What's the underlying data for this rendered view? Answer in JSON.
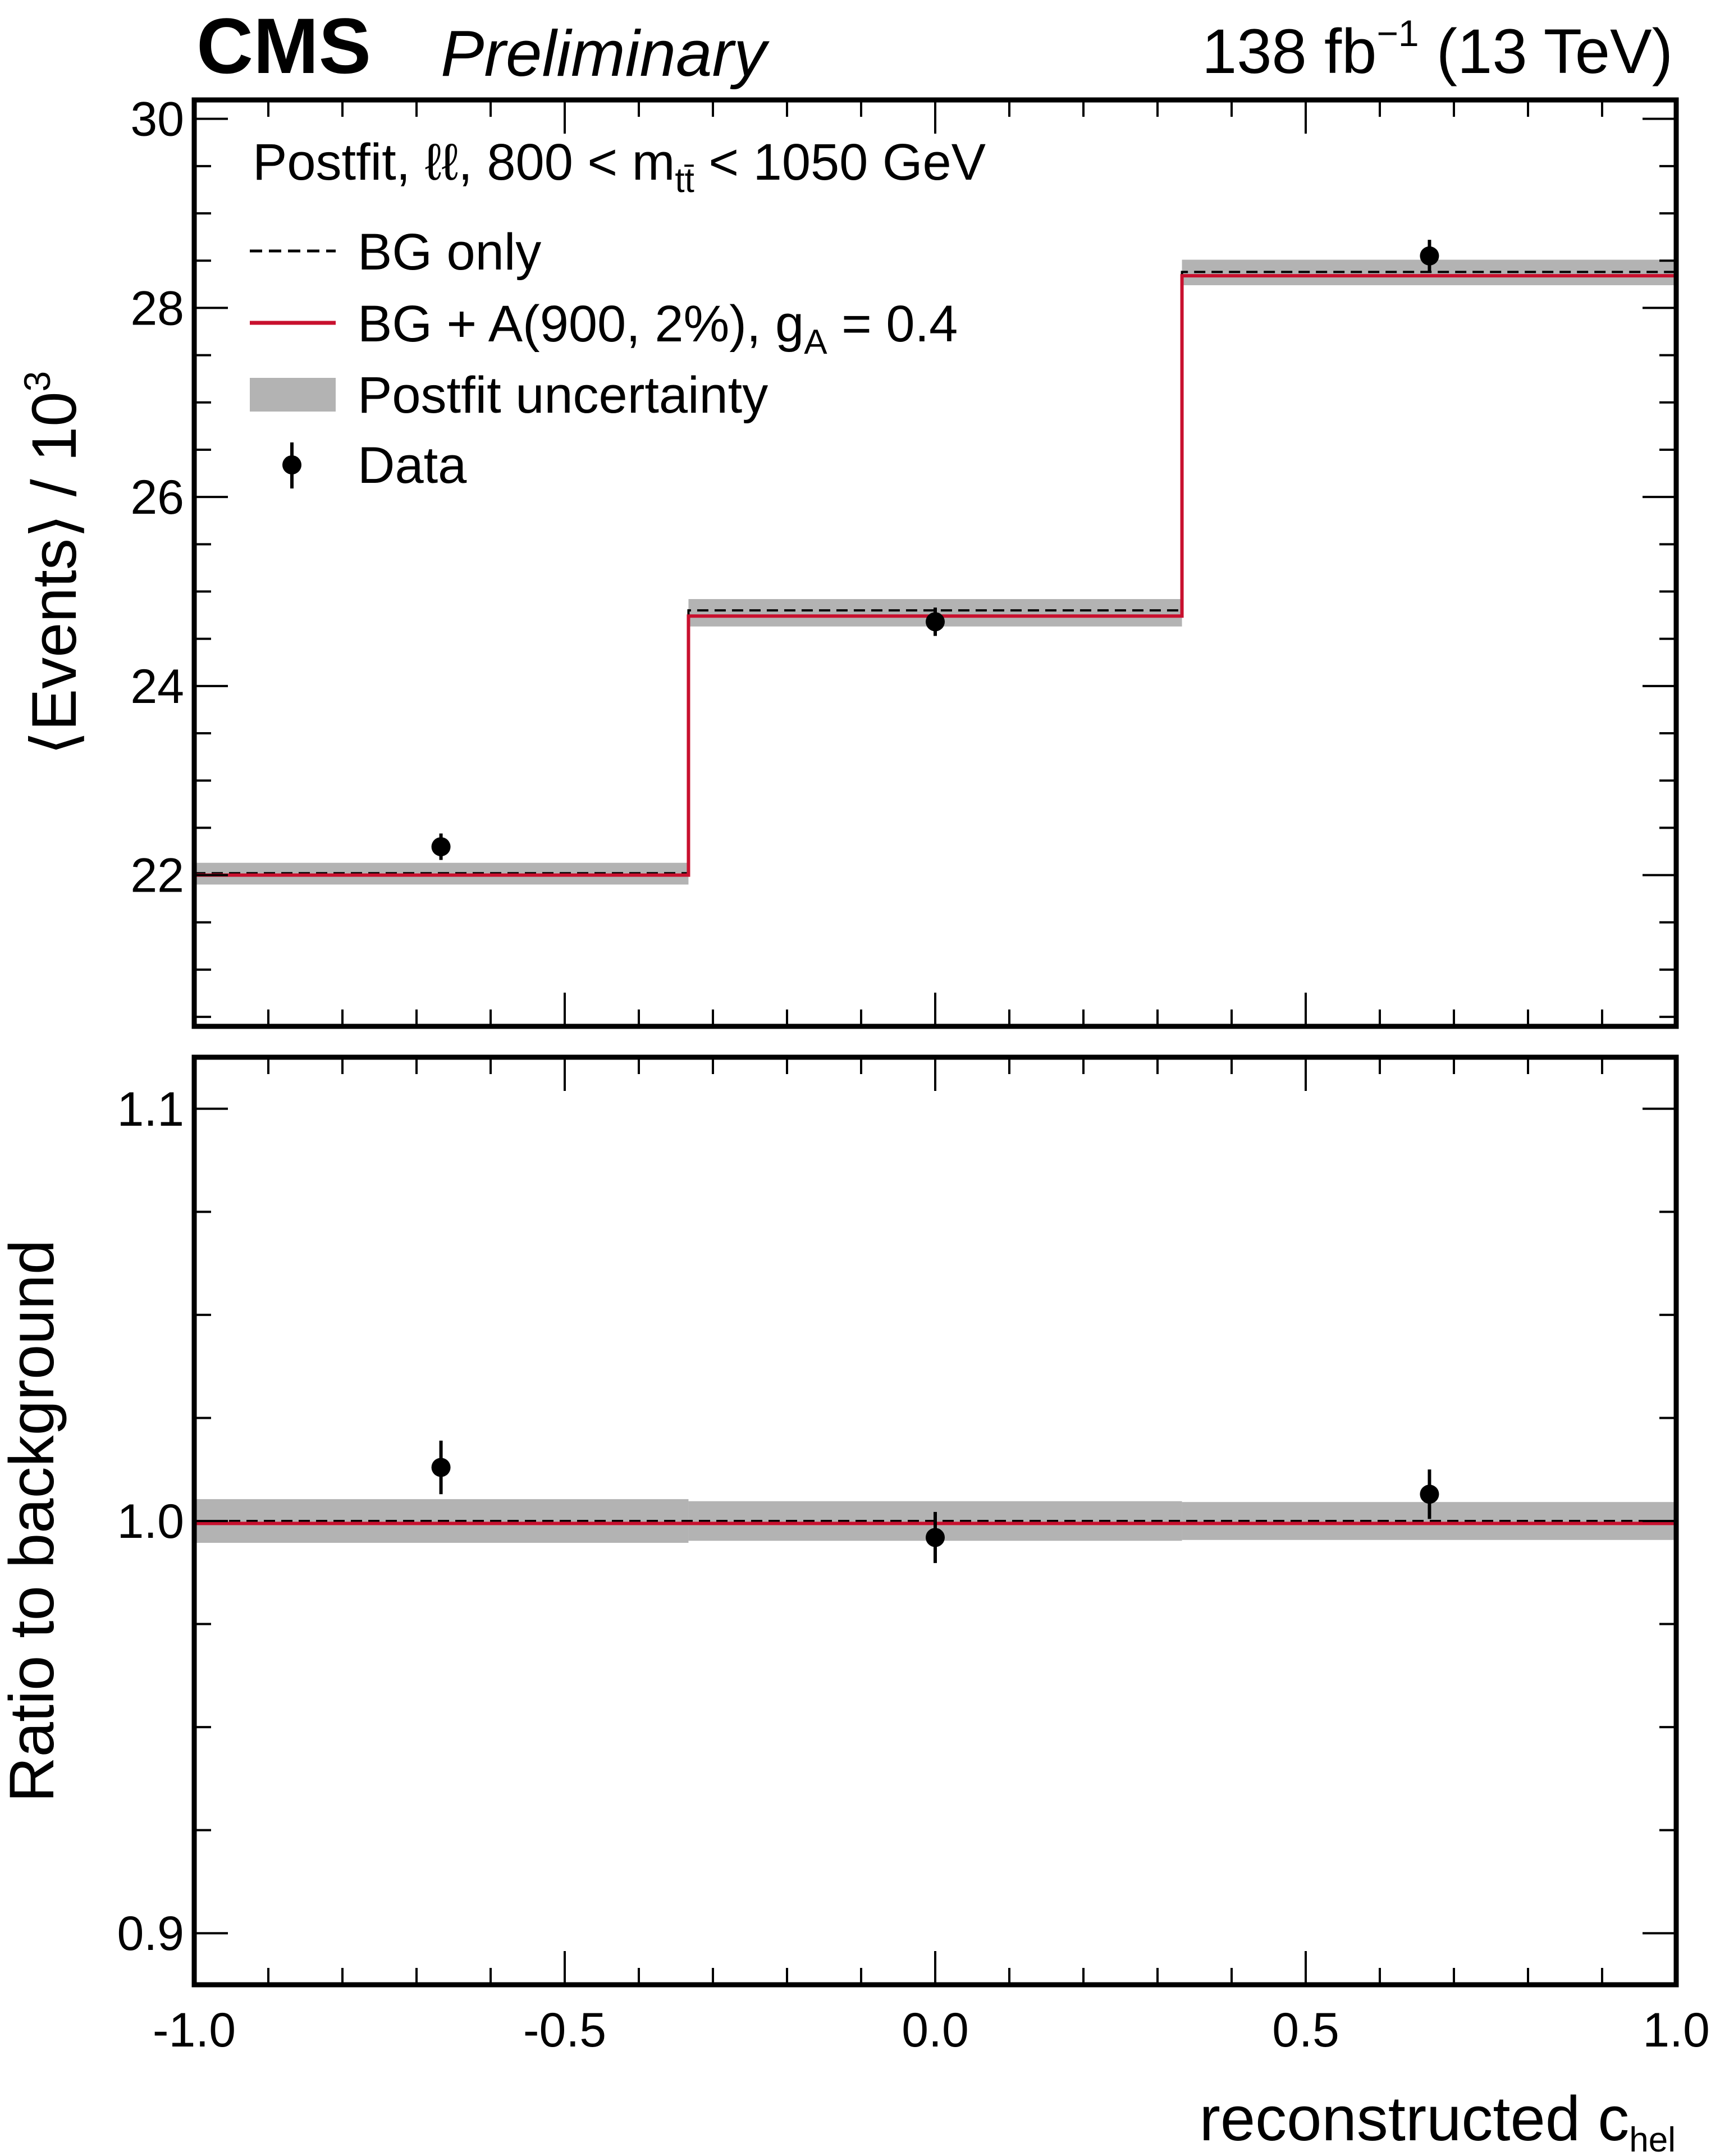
{
  "header": {
    "experiment": "CMS",
    "status": "Preliminary",
    "lumi": "138 fb",
    "lumi_exp": "−1",
    "energy": "(13 TeV)"
  },
  "colors": {
    "signal": "#c8102e",
    "band": "#b3b3b3",
    "bg": "#000000",
    "data": "#000000"
  },
  "chart_data": [
    {
      "type": "line",
      "panel": "main",
      "annotation": {
        "prefix": "Postfit, ℓℓ, 800 < m",
        "sub": "tt̄",
        "suffix": " < 1050 GeV"
      },
      "xlabel": {
        "main": "reconstructed c",
        "sub": "hel"
      },
      "ylabel": {
        "main": "⟨Events⟩ / 10",
        "sup": "3"
      },
      "xlim": [
        -1.0,
        1.0
      ],
      "ylim": [
        20.4,
        30.2
      ],
      "yticks": [
        "22",
        "24",
        "26",
        "28",
        "30"
      ],
      "ytick_values": [
        22,
        24,
        26,
        28,
        30
      ],
      "bin_edges": [
        -1.0,
        -0.333,
        0.333,
        1.0
      ],
      "legend": {
        "bg_only": "BG only",
        "signal_prefix": "BG + A(900, 2%), g",
        "signal_sub": "A",
        "signal_suffix": " = 0.4",
        "uncertainty": "Postfit uncertainty",
        "data": "Data"
      },
      "series": [
        {
          "name": "BG only",
          "style": "dashed",
          "values": [
            22.02,
            24.8,
            28.38
          ]
        },
        {
          "name": "BG + A(900, 2%), gA = 0.4",
          "style": "solid",
          "values": [
            22.0,
            24.74,
            28.34
          ]
        },
        {
          "name": "Postfit uncertainty",
          "style": "band",
          "low": [
            21.9,
            24.63,
            28.24
          ],
          "high": [
            22.13,
            24.92,
            28.51
          ]
        },
        {
          "name": "Data",
          "style": "points",
          "x": [
            -0.667,
            0.0,
            0.667
          ],
          "values": [
            22.3,
            24.68,
            28.55
          ],
          "err": [
            0.14,
            0.15,
            0.17
          ]
        }
      ]
    },
    {
      "type": "line",
      "panel": "ratio",
      "ylabel": "Ratio to background",
      "xlim": [
        -1.0,
        1.0
      ],
      "ylim": [
        0.8875,
        1.1125
      ],
      "xticks": [
        "-1.0",
        "-0.5",
        "0.0",
        "0.5",
        "1.0"
      ],
      "xtick_values": [
        -1.0,
        -0.5,
        0.0,
        0.5,
        1.0
      ],
      "yticks": [
        "0.9",
        "1.0",
        "1.1"
      ],
      "ytick_values": [
        0.9,
        1.0,
        1.1
      ],
      "bin_edges": [
        -1.0,
        -0.333,
        0.333,
        1.0
      ],
      "series": [
        {
          "name": "BG only",
          "style": "dashed",
          "values": [
            1.0,
            1.0,
            1.0
          ]
        },
        {
          "name": "BG + A(900, 2%), gA = 0.4",
          "style": "solid",
          "values": [
            0.9994,
            0.9994,
            0.9994
          ]
        },
        {
          "name": "Postfit uncertainty",
          "style": "band",
          "low": [
            0.9947,
            0.9952,
            0.9954
          ],
          "high": [
            1.0053,
            1.0048,
            1.0046
          ]
        },
        {
          "name": "Data",
          "style": "points",
          "x": [
            -0.667,
            0.0,
            0.667
          ],
          "values": [
            1.013,
            0.996,
            1.0065
          ],
          "err": [
            0.0065,
            0.0062,
            0.006
          ]
        }
      ]
    }
  ]
}
